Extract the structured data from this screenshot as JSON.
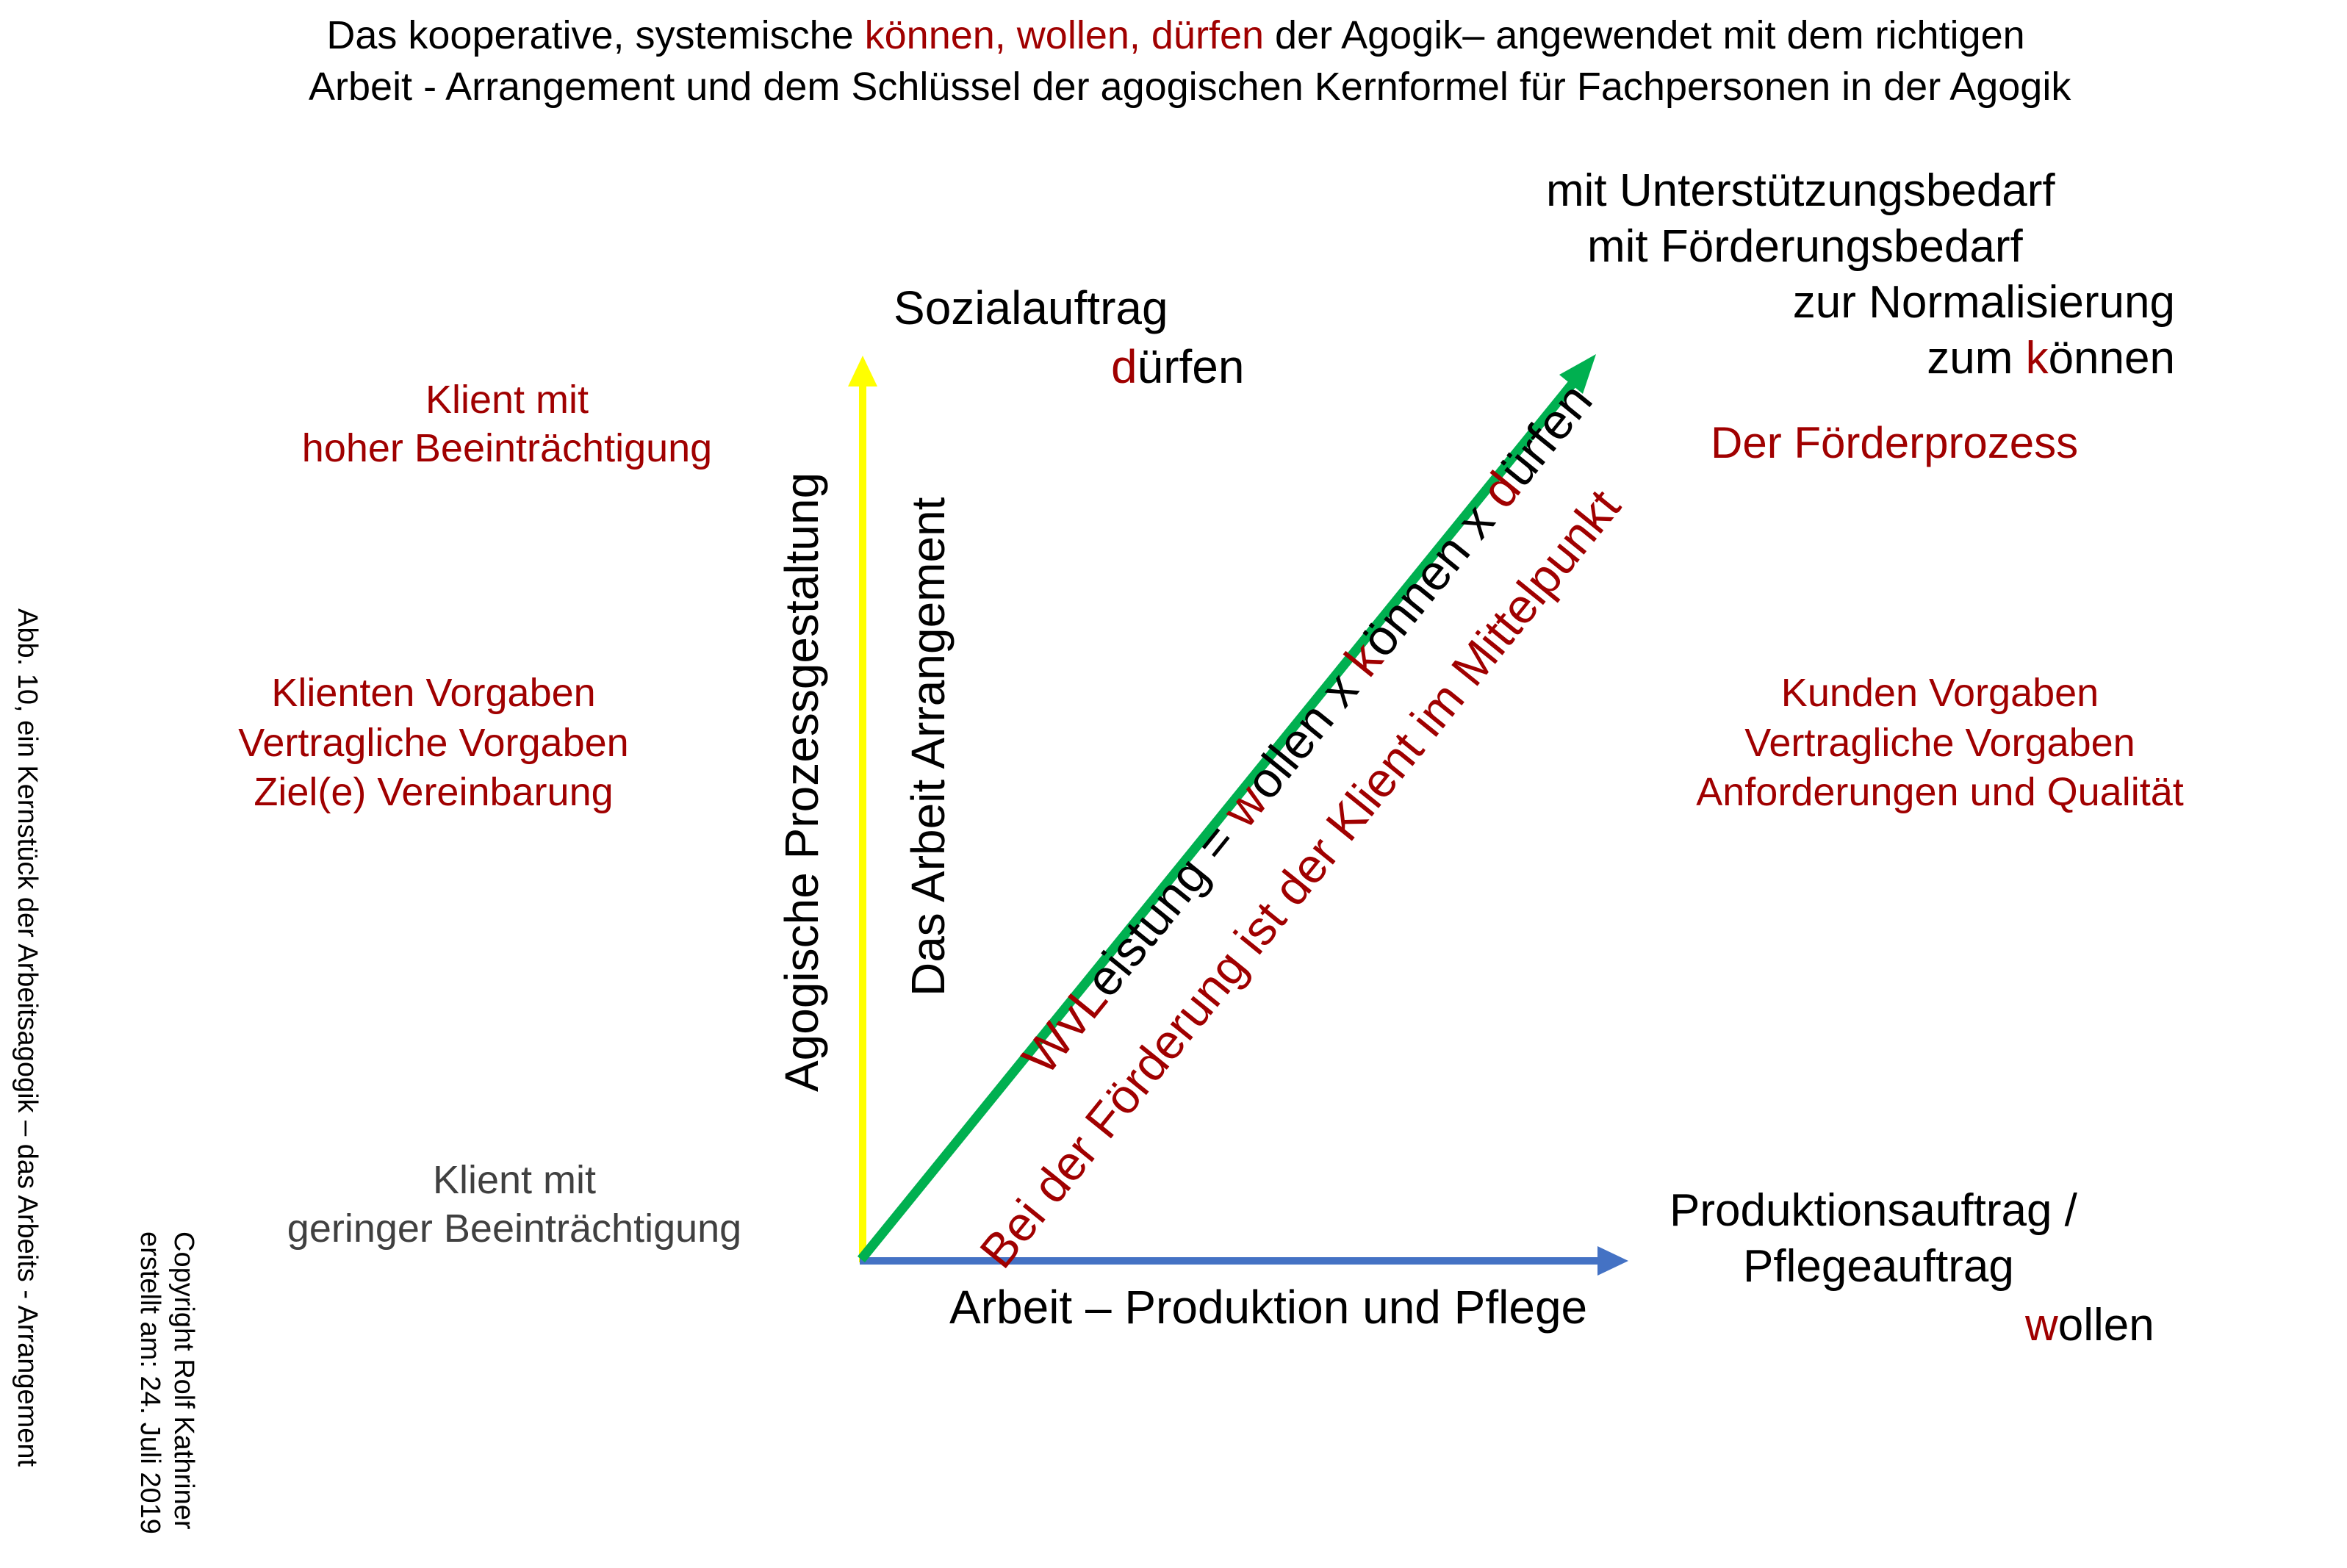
{
  "header": {
    "line1_part1": "Das kooperative, systemische ",
    "line1_highlight": "können, wollen, dürfen",
    "line1_part2": " der Agogik– angewendet mit dem richtigen",
    "line2": "Arbeit - Arrangement und dem Schlüssel der agogischen Kernformel für Fachpersonen in der Agogik"
  },
  "top_right": {
    "line1": "mit Unterstützungsbedarf",
    "line2": "mit Förderungsbedarf",
    "line3": "zur Normalisierung",
    "line4_prefix": "zum ",
    "line4_initial": "k",
    "line4_rest": "önnen",
    "foerderprozess": "Der Förderprozess"
  },
  "sozialauftrag": {
    "label": "Sozialauftrag",
    "duerfen_initial": "d",
    "duerfen_rest": "ürfen"
  },
  "left_top": {
    "line1": "Klient mit",
    "line2": "hoher Beeinträchtigung"
  },
  "left_middle": {
    "line1": "Klienten Vorgaben",
    "line2": "Vertragliche Vorgaben",
    "line3": "Ziel(e) Vereinbarung"
  },
  "left_bottom": {
    "line1": "Klient mit",
    "line2": "geringer Beeinträchtigung"
  },
  "right_middle": {
    "line1": "Kunden Vorgaben",
    "line2": "Vertragliche Vorgaben",
    "line3": "Anforderungen und Qualität"
  },
  "vertical_labels": {
    "prozess": "Agogische Prozessgestaltung",
    "arrangement": "Das Arbeit Arrangement"
  },
  "diagonal": {
    "formula_wv": "WvL",
    "formula_a": "eistung = ",
    "formula_w": "w",
    "formula_b": "ollen x ",
    "formula_k": "k",
    "formula_c": "önnen x ",
    "formula_d": "d",
    "formula_e": "ürfen",
    "center": "Bei der Förderung ist der Klient im Mittelpunkt"
  },
  "bottom_axis": {
    "label": "Arbeit – Produktion und Pflege"
  },
  "produktion": {
    "line1": "Produktionsauftrag /",
    "line2": "Pflegeauftrag",
    "wollen_initial": "w",
    "wollen_rest": "ollen"
  },
  "side_caption": "Abb. 10, ein Kernstück der Arbeitsagogik – das Arbeits - Arrangement",
  "copyright": {
    "line1": "Copyright Rolf Kathriner",
    "line2": "erstellt am: 24. Juli 2019"
  },
  "colors": {
    "accent_red": "#a00000",
    "y_axis": "#ffff00",
    "x_axis": "#4472c4",
    "diagonal": "#00b050"
  }
}
